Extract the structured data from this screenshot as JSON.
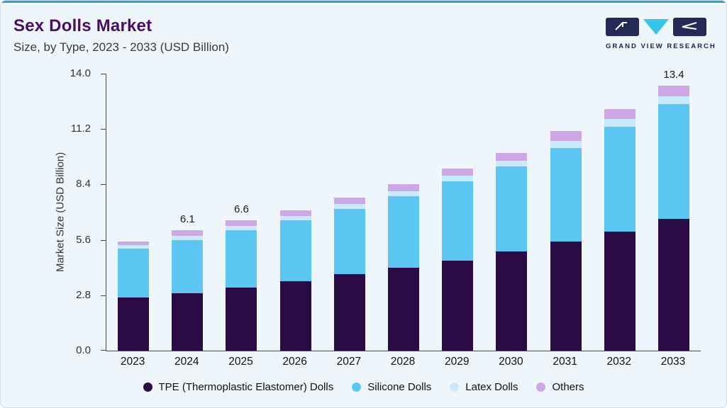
{
  "header": {
    "title": "Sex Dolls Market",
    "subtitle": "Size, by Type, 2023 - 2033 (USD Billion)",
    "logo_text": "GRAND VIEW RESEARCH"
  },
  "colors": {
    "accent_bar": "#2aa3d8",
    "title": "#4a0d66",
    "logo_navy": "#232a55",
    "logo_teal": "#35c5e8",
    "background": "#eef6fc"
  },
  "chart_data": {
    "type": "bar",
    "stacked": true,
    "title": "Sex Dolls Market Size, by Type, 2023 - 2033 (USD Billion)",
    "xlabel": "",
    "ylabel": "Market Size (USD Billion)",
    "ylim": [
      0,
      14.0
    ],
    "yticks": [
      0.0,
      2.8,
      5.6,
      8.4,
      11.2,
      14.0
    ],
    "grid": false,
    "legend_position": "bottom",
    "categories": [
      "2023",
      "2024",
      "2025",
      "2026",
      "2027",
      "2028",
      "2029",
      "2030",
      "2031",
      "2032",
      "2033"
    ],
    "series": [
      {
        "name": "TPE (Thermoplastic Elastomer) Dolls",
        "color": "#2b0b45",
        "values": [
          2.7,
          2.9,
          3.2,
          3.5,
          3.85,
          4.2,
          4.55,
          5.0,
          5.5,
          6.0,
          6.65
        ]
      },
      {
        "name": "Silicone Dolls",
        "color": "#5bc6f2",
        "values": [
          2.45,
          2.7,
          2.9,
          3.1,
          3.3,
          3.6,
          4.0,
          4.3,
          4.75,
          5.3,
          5.8
        ]
      },
      {
        "name": "Latex Dolls",
        "color": "#c8eafb",
        "values": [
          0.17,
          0.2,
          0.2,
          0.2,
          0.25,
          0.25,
          0.3,
          0.3,
          0.35,
          0.4,
          0.4
        ]
      },
      {
        "name": "Others",
        "color": "#cfa6e6",
        "values": [
          0.18,
          0.3,
          0.3,
          0.3,
          0.35,
          0.35,
          0.35,
          0.4,
          0.5,
          0.5,
          0.55
        ]
      }
    ],
    "totals": [
      5.5,
      6.1,
      6.6,
      7.1,
      7.75,
      8.4,
      9.2,
      10.0,
      11.1,
      12.2,
      13.4
    ],
    "annotated_totals": {
      "2024": "6.1",
      "2025": "6.6",
      "2033": "13.4"
    }
  }
}
